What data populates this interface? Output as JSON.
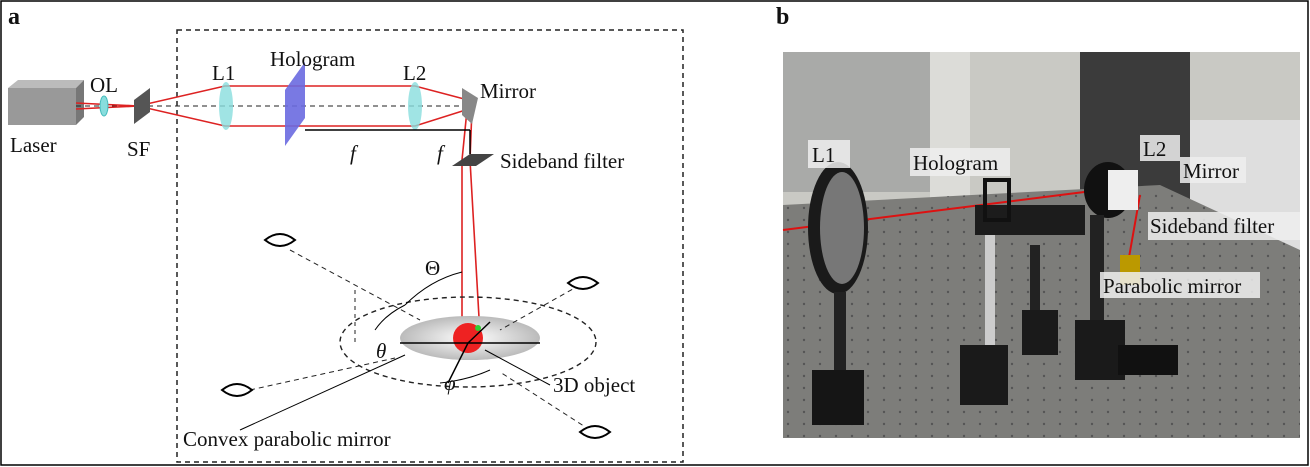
{
  "panel_a": {
    "label": "a",
    "texts": {
      "ol": "OL",
      "l1": "L1",
      "hologram": "Hologram",
      "l2": "L2",
      "mirror": "Mirror",
      "laser": "Laser",
      "sf": "SF",
      "f1": "f",
      "f2": "f",
      "sideband_filter": "Sideband filter",
      "big_theta": "Θ",
      "theta": "θ",
      "phi": "φ",
      "object": "3D object",
      "convex_mirror": "Convex parabolic mirror"
    }
  },
  "panel_b": {
    "label": "b",
    "texts": {
      "l1": "L1",
      "hologram": "Hologram",
      "l2": "L2",
      "mirror": "Mirror",
      "sideband_filter": "Sideband filter",
      "parabolic_mirror": "Parabolic mirror"
    }
  }
}
